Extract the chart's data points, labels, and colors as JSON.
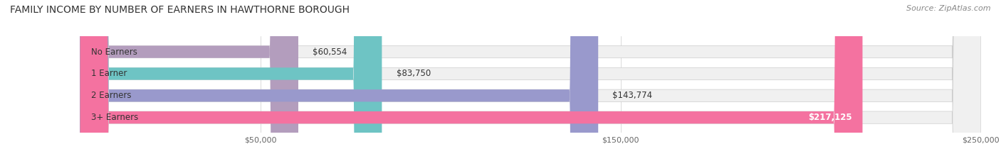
{
  "title": "FAMILY INCOME BY NUMBER OF EARNERS IN HAWTHORNE BOROUGH",
  "source": "Source: ZipAtlas.com",
  "categories": [
    "No Earners",
    "1 Earner",
    "2 Earners",
    "3+ Earners"
  ],
  "values": [
    60554,
    83750,
    143774,
    217125
  ],
  "labels": [
    "$60,554",
    "$83,750",
    "$143,774",
    "$217,125"
  ],
  "bar_colors": [
    "#b39dbd",
    "#6ec4c4",
    "#9999cc",
    "#f472a0"
  ],
  "bar_bg_color": "#f0f0f0",
  "bar_border_color": "#cccccc",
  "xlim": [
    0,
    250000
  ],
  "xticks": [
    50000,
    150000,
    250000
  ],
  "xtick_labels": [
    "$50,000",
    "$150,000",
    "$250,000"
  ],
  "title_fontsize": 10,
  "source_fontsize": 8,
  "label_fontsize": 8.5,
  "category_fontsize": 8.5,
  "background_color": "#ffffff",
  "bar_height": 0.55,
  "bar_bg_alpha": 1.0
}
